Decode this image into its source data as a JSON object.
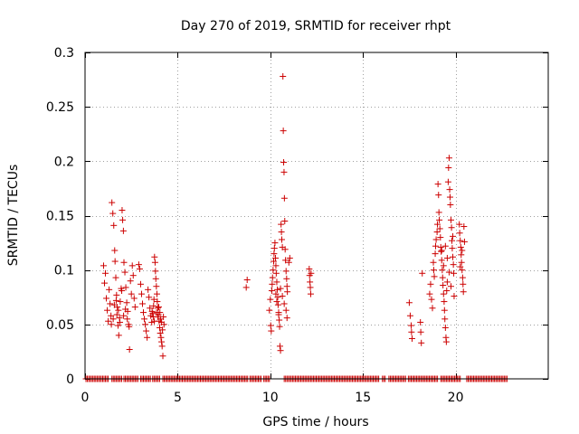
{
  "chart_data": {
    "type": "scatter",
    "title": "Day 270 of 2019, SRMTID for receiver rhpt",
    "xlabel": "GPS time / hours",
    "ylabel": "SRMTID / TECUs",
    "xlim": [
      0,
      25
    ],
    "ylim": [
      0,
      0.3
    ],
    "xticks": [
      0,
      5,
      10,
      15,
      20
    ],
    "xtick_labels": [
      "0",
      "5",
      "10",
      "15",
      "20"
    ],
    "yticks": [
      0,
      0.05,
      0.1,
      0.15,
      0.2,
      0.25,
      0.3
    ],
    "ytick_labels": [
      "0",
      "0.05",
      "0.1",
      "0.15",
      "0.2",
      "0.25",
      "0.3"
    ],
    "grid": true,
    "marker": "+",
    "color": "#cc0000",
    "series": [
      {
        "name": "SRMTID",
        "points": [
          [
            1.0,
            0.104
          ],
          [
            1.05,
            0.088
          ],
          [
            1.1,
            0.097
          ],
          [
            1.15,
            0.074
          ],
          [
            1.2,
            0.063
          ],
          [
            1.25,
            0.053
          ],
          [
            1.3,
            0.082
          ],
          [
            1.35,
            0.069
          ],
          [
            1.4,
            0.058
          ],
          [
            1.45,
            0.162
          ],
          [
            1.5,
            0.152
          ],
          [
            1.55,
            0.141
          ],
          [
            1.6,
            0.118
          ],
          [
            1.62,
            0.108
          ],
          [
            1.66,
            0.093
          ],
          [
            1.7,
            0.077
          ],
          [
            1.74,
            0.066
          ],
          [
            1.78,
            0.049
          ],
          [
            1.82,
            0.04
          ],
          [
            1.86,
            0.056
          ],
          [
            1.9,
            0.071
          ],
          [
            1.95,
            0.083
          ],
          [
            2.0,
            0.155
          ],
          [
            2.03,
            0.146
          ],
          [
            2.07,
            0.136
          ],
          [
            2.1,
            0.107
          ],
          [
            2.15,
            0.098
          ],
          [
            2.2,
            0.084
          ],
          [
            2.25,
            0.07
          ],
          [
            2.3,
            0.062
          ],
          [
            2.35,
            0.05
          ],
          [
            2.4,
            0.027
          ],
          [
            2.45,
            0.09
          ],
          [
            2.5,
            0.078
          ],
          [
            2.55,
            0.104
          ],
          [
            2.6,
            0.095
          ],
          [
            2.65,
            0.074
          ],
          [
            2.7,
            0.066
          ],
          [
            1.42,
            0.05
          ],
          [
            1.52,
            0.055
          ],
          [
            1.58,
            0.068
          ],
          [
            1.68,
            0.072
          ],
          [
            1.72,
            0.059
          ],
          [
            1.8,
            0.063
          ],
          [
            1.88,
            0.052
          ],
          [
            1.98,
            0.081
          ],
          [
            2.08,
            0.058
          ],
          [
            2.18,
            0.064
          ],
          [
            2.28,
            0.055
          ],
          [
            2.38,
            0.048
          ],
          [
            2.9,
            0.105
          ],
          [
            2.95,
            0.101
          ],
          [
            3.0,
            0.087
          ],
          [
            3.05,
            0.078
          ],
          [
            3.1,
            0.069
          ],
          [
            3.15,
            0.061
          ],
          [
            3.2,
            0.055
          ],
          [
            3.25,
            0.05
          ],
          [
            3.3,
            0.044
          ],
          [
            3.35,
            0.038
          ],
          [
            3.4,
            0.082
          ],
          [
            3.45,
            0.075
          ],
          [
            3.5,
            0.065
          ],
          [
            3.55,
            0.058
          ],
          [
            3.6,
            0.052
          ],
          [
            3.65,
            0.06
          ],
          [
            3.7,
            0.067
          ],
          [
            3.72,
            0.073
          ],
          [
            3.75,
            0.112
          ],
          [
            3.78,
            0.107
          ],
          [
            3.8,
            0.099
          ],
          [
            3.82,
            0.092
          ],
          [
            3.85,
            0.085
          ],
          [
            3.88,
            0.078
          ],
          [
            3.9,
            0.071
          ],
          [
            3.93,
            0.065
          ],
          [
            3.96,
            0.059
          ],
          [
            4.0,
            0.053
          ],
          [
            4.03,
            0.047
          ],
          [
            4.06,
            0.042
          ],
          [
            4.1,
            0.038
          ],
          [
            4.13,
            0.034
          ],
          [
            4.16,
            0.03
          ],
          [
            4.2,
            0.021
          ],
          [
            4.23,
            0.057
          ],
          [
            4.26,
            0.05
          ],
          [
            3.62,
            0.062
          ],
          [
            3.68,
            0.057
          ],
          [
            3.74,
            0.053
          ],
          [
            3.86,
            0.061
          ],
          [
            3.92,
            0.057
          ],
          [
            3.98,
            0.066
          ],
          [
            4.04,
            0.061
          ],
          [
            4.08,
            0.055
          ],
          [
            4.12,
            0.052
          ],
          [
            4.18,
            0.045
          ],
          [
            8.7,
            0.084
          ],
          [
            8.75,
            0.091
          ],
          [
            9.95,
            0.063
          ],
          [
            10.0,
            0.073
          ],
          [
            10.02,
            0.049
          ],
          [
            10.05,
            0.044
          ],
          [
            10.08,
            0.081
          ],
          [
            10.1,
            0.087
          ],
          [
            10.12,
            0.093
          ],
          [
            10.15,
            0.1
          ],
          [
            10.18,
            0.108
          ],
          [
            10.2,
            0.115
          ],
          [
            10.22,
            0.12
          ],
          [
            10.25,
            0.125
          ],
          [
            10.28,
            0.111
          ],
          [
            10.3,
            0.104
          ],
          [
            10.32,
            0.097
          ],
          [
            10.35,
            0.089
          ],
          [
            10.38,
            0.082
          ],
          [
            10.4,
            0.075
          ],
          [
            10.42,
            0.068
          ],
          [
            10.45,
            0.061
          ],
          [
            10.48,
            0.054
          ],
          [
            10.5,
            0.048
          ],
          [
            10.52,
            0.03
          ],
          [
            10.55,
            0.026
          ],
          [
            10.58,
            0.142
          ],
          [
            10.6,
            0.135
          ],
          [
            10.62,
            0.128
          ],
          [
            10.65,
            0.121
          ],
          [
            10.68,
            0.278
          ],
          [
            10.7,
            0.228
          ],
          [
            10.72,
            0.199
          ],
          [
            10.74,
            0.19
          ],
          [
            10.76,
            0.166
          ],
          [
            10.78,
            0.145
          ],
          [
            10.8,
            0.119
          ],
          [
            10.82,
            0.109
          ],
          [
            10.85,
            0.099
          ],
          [
            10.88,
            0.092
          ],
          [
            10.9,
            0.085
          ],
          [
            10.92,
            0.08
          ],
          [
            11.0,
            0.107
          ],
          [
            11.05,
            0.111
          ],
          [
            10.3,
            0.078
          ],
          [
            10.35,
            0.071
          ],
          [
            10.45,
            0.059
          ],
          [
            10.55,
            0.083
          ],
          [
            10.65,
            0.076
          ],
          [
            10.75,
            0.069
          ],
          [
            10.85,
            0.063
          ],
          [
            10.9,
            0.056
          ],
          [
            12.1,
            0.101
          ],
          [
            12.12,
            0.095
          ],
          [
            12.14,
            0.089
          ],
          [
            12.16,
            0.084
          ],
          [
            12.18,
            0.078
          ],
          [
            12.2,
            0.097
          ],
          [
            17.5,
            0.07
          ],
          [
            17.55,
            0.058
          ],
          [
            17.6,
            0.049
          ],
          [
            17.62,
            0.043
          ],
          [
            17.65,
            0.037
          ],
          [
            18.1,
            0.052
          ],
          [
            18.12,
            0.043
          ],
          [
            18.15,
            0.033
          ],
          [
            18.2,
            0.097
          ],
          [
            18.6,
            0.078
          ],
          [
            18.65,
            0.087
          ],
          [
            18.7,
            0.073
          ],
          [
            18.75,
            0.065
          ],
          [
            18.8,
            0.107
          ],
          [
            18.82,
            0.1
          ],
          [
            18.85,
            0.094
          ],
          [
            18.9,
            0.115
          ],
          [
            18.92,
            0.122
          ],
          [
            18.95,
            0.128
          ],
          [
            19.0,
            0.135
          ],
          [
            19.02,
            0.142
          ],
          [
            19.05,
            0.179
          ],
          [
            19.08,
            0.169
          ],
          [
            19.1,
            0.153
          ],
          [
            19.12,
            0.146
          ],
          [
            19.15,
            0.138
          ],
          [
            19.18,
            0.13
          ],
          [
            19.2,
            0.121
          ],
          [
            19.22,
            0.117
          ],
          [
            19.25,
            0.109
          ],
          [
            19.28,
            0.1
          ],
          [
            19.3,
            0.093
          ],
          [
            19.32,
            0.086
          ],
          [
            19.35,
            0.078
          ],
          [
            19.38,
            0.071
          ],
          [
            19.4,
            0.063
          ],
          [
            19.42,
            0.055
          ],
          [
            19.45,
            0.047
          ],
          [
            19.48,
            0.038
          ],
          [
            19.5,
            0.034
          ],
          [
            19.52,
            0.081
          ],
          [
            19.55,
            0.089
          ],
          [
            19.6,
            0.181
          ],
          [
            19.62,
            0.194
          ],
          [
            19.65,
            0.203
          ],
          [
            19.68,
            0.174
          ],
          [
            19.7,
            0.167
          ],
          [
            19.72,
            0.16
          ],
          [
            19.75,
            0.146
          ],
          [
            19.78,
            0.139
          ],
          [
            19.8,
            0.127
          ],
          [
            19.82,
            0.12
          ],
          [
            19.85,
            0.112
          ],
          [
            19.88,
            0.105
          ],
          [
            19.9,
            0.097
          ],
          [
            19.92,
            0.076
          ],
          [
            20.2,
            0.142
          ],
          [
            20.22,
            0.134
          ],
          [
            20.25,
            0.127
          ],
          [
            20.28,
            0.121
          ],
          [
            20.3,
            0.114
          ],
          [
            20.32,
            0.107
          ],
          [
            20.35,
            0.1
          ],
          [
            20.38,
            0.093
          ],
          [
            20.4,
            0.087
          ],
          [
            20.42,
            0.08
          ],
          [
            20.45,
            0.14
          ],
          [
            20.48,
            0.126
          ],
          [
            19.25,
            0.118
          ],
          [
            19.35,
            0.104
          ],
          [
            19.45,
            0.122
          ],
          [
            19.55,
            0.111
          ],
          [
            19.65,
            0.098
          ],
          [
            19.75,
            0.085
          ],
          [
            19.85,
            0.131
          ],
          [
            20.25,
            0.103
          ],
          [
            20.35,
            0.118
          ]
        ],
        "zero_segments": [
          [
            0.05,
            1.3
          ],
          [
            1.45,
            2.0
          ],
          [
            2.1,
            2.85
          ],
          [
            3.0,
            3.55
          ],
          [
            3.65,
            4.05
          ],
          [
            4.2,
            8.8
          ],
          [
            8.9,
            9.5
          ],
          [
            9.65,
            10.0
          ],
          [
            10.75,
            15.9
          ],
          [
            16.05,
            16.2
          ],
          [
            16.4,
            17.3
          ],
          [
            17.45,
            19.05
          ],
          [
            19.2,
            20.3
          ],
          [
            20.6,
            22.8
          ]
        ]
      }
    ]
  }
}
